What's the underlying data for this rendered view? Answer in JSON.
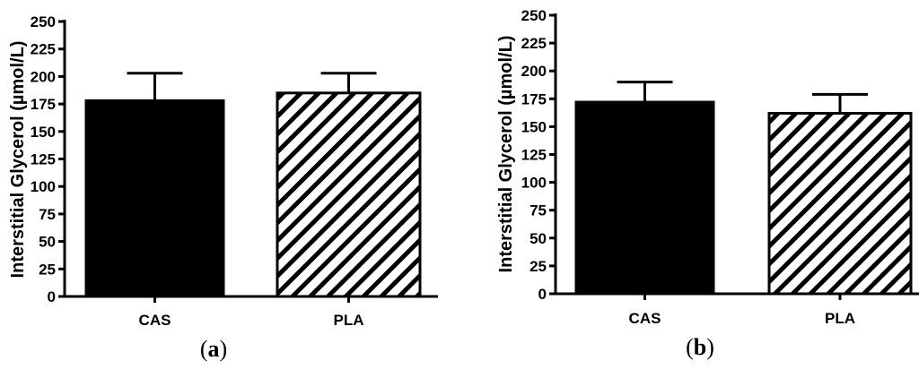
{
  "chart_data": [
    {
      "type": "bar",
      "panel_label": "a",
      "categories": [
        "CAS",
        "PLA"
      ],
      "values": [
        178,
        185
      ],
      "errors": [
        25,
        18
      ],
      "ylabel": "Interstitial Glycerol (µmol/L)",
      "ylim": [
        0,
        250
      ],
      "yticks": [
        0,
        25,
        50,
        75,
        100,
        125,
        150,
        175,
        200,
        225,
        250
      ],
      "bar_fills": [
        "solid",
        "hatched"
      ],
      "colors": {
        "bar": "#000000",
        "hatch_background": "#ffffff"
      }
    },
    {
      "type": "bar",
      "panel_label": "b",
      "categories": [
        "CAS",
        "PLA"
      ],
      "values": [
        172,
        162
      ],
      "errors": [
        18,
        17
      ],
      "ylabel": "Interstitial Glycerol (µmol/L)",
      "ylim": [
        0,
        250
      ],
      "yticks": [
        0,
        25,
        50,
        75,
        100,
        125,
        150,
        175,
        200,
        225,
        250
      ],
      "bar_fills": [
        "solid",
        "hatched"
      ],
      "colors": {
        "bar": "#000000",
        "hatch_background": "#ffffff"
      }
    }
  ]
}
